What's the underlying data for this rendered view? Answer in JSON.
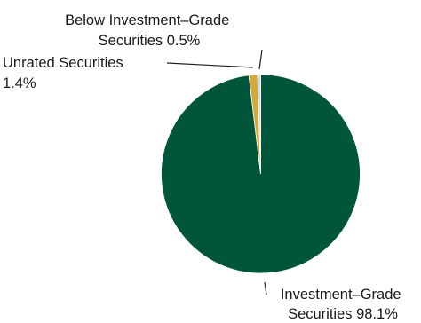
{
  "chart_data": {
    "type": "pie",
    "title": "",
    "slices": [
      {
        "label_lines": [
          "Investment–Grade",
          "Securities 98.1%"
        ],
        "value": 98.1,
        "color": "#00553a"
      },
      {
        "label_lines": [
          "Unrated Securities",
          "1.4%"
        ],
        "value": 1.4,
        "color": "#d4a93a"
      },
      {
        "label_lines": [
          "Below Investment–Grade",
          "Securities 0.5%"
        ],
        "value": 0.5,
        "color": "#d8d8d8"
      }
    ],
    "start": "12 o'clock",
    "direction": "clockwise",
    "legend": "none (direct labels with leader lines)"
  }
}
